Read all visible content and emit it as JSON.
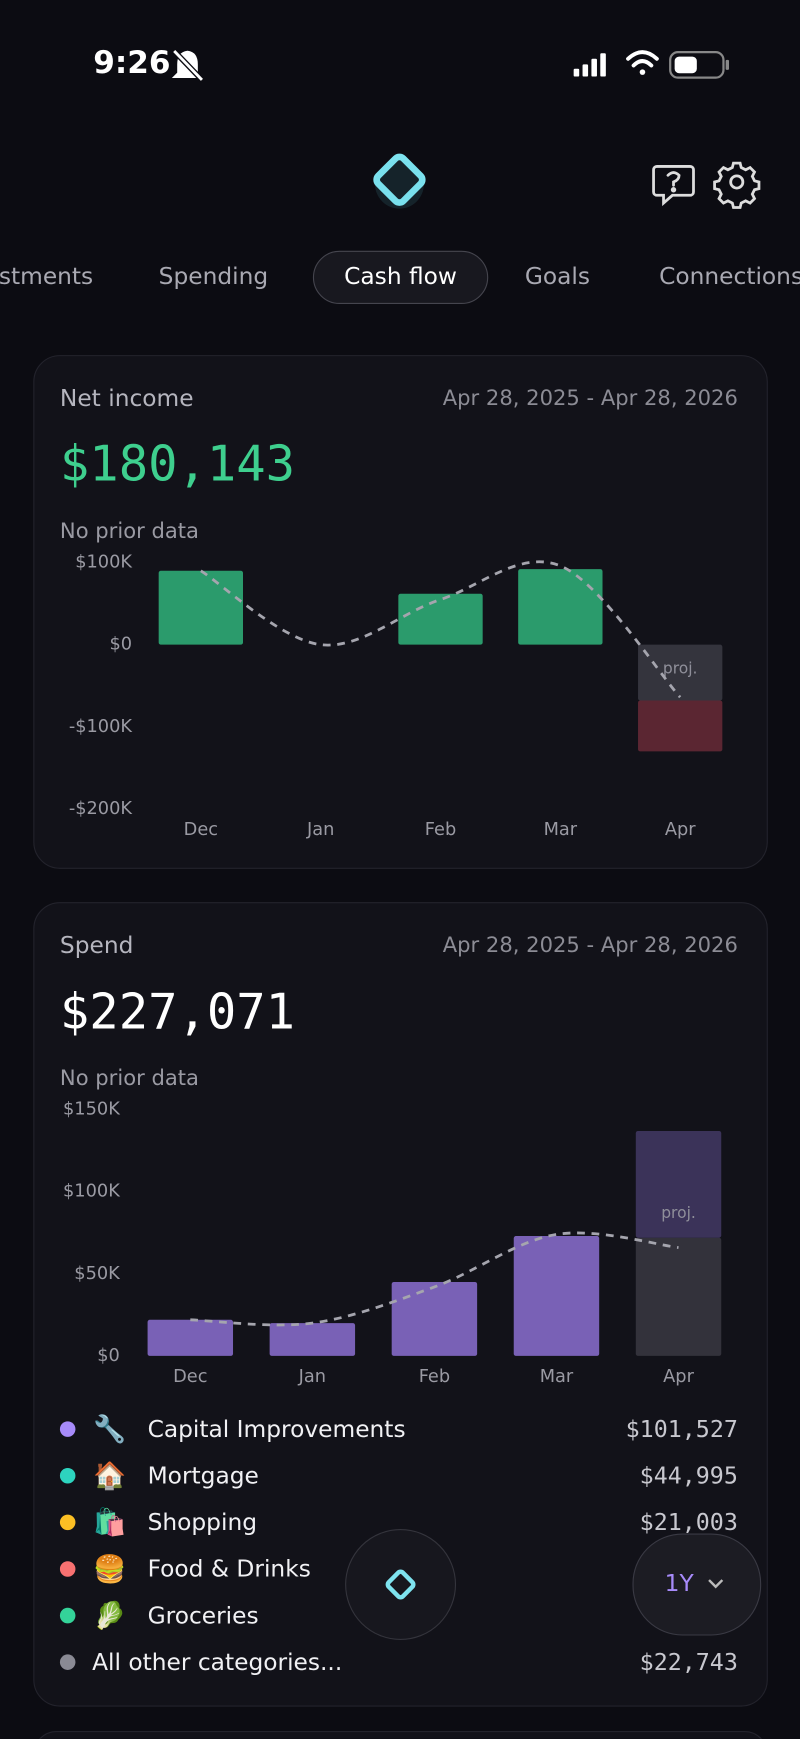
{
  "status": {
    "time": "9:26"
  },
  "tabs": [
    "Investments",
    "Spending",
    "Cash flow",
    "Goals",
    "Connections"
  ],
  "net_income": {
    "title": "Net income",
    "date_range": "Apr 28, 2025 - Apr 28, 2026",
    "amount": "$180,143",
    "comparison": "No prior data",
    "chart": {
      "type": "bar",
      "categories": [
        "Dec",
        "Jan",
        "Feb",
        "Mar",
        "Apr"
      ],
      "values": [
        90000,
        0,
        62000,
        92000,
        -62000
      ],
      "colors": [
        "#2b9b6c",
        "#2b9b6c",
        "#2b9b6c",
        "#2b9b6c",
        "#5b2632"
      ],
      "projected": [
        null,
        null,
        null,
        null,
        -68000
      ],
      "projected_color": "#34343d",
      "projected_label": "proj.",
      "projected_first": true,
      "trend": [
        90000,
        0,
        55000,
        96000,
        -64000
      ],
      "ylim": [
        -200000,
        100000
      ],
      "yticks": [
        {
          "value": 100000,
          "label": "$100K"
        },
        {
          "value": 0,
          "label": "$0"
        },
        {
          "value": -100000,
          "label": "-$100K"
        },
        {
          "value": -200000,
          "label": "-$200K"
        }
      ],
      "grid": false
    }
  },
  "spend": {
    "title": "Spend",
    "date_range": "Apr 28, 2025 - Apr 28, 2026",
    "amount": "$227,071",
    "comparison": "No prior data",
    "chart": {
      "type": "bar",
      "categories": [
        "Dec",
        "Jan",
        "Feb",
        "Mar",
        "Apr"
      ],
      "values": [
        22000,
        20000,
        45000,
        73000,
        72000
      ],
      "colors": [
        "#7961b6",
        "#7961b6",
        "#7961b6",
        "#7961b6",
        "#33323b"
      ],
      "projected": [
        null,
        null,
        null,
        null,
        65000
      ],
      "projected_color": "#3b3359",
      "projected_label": "proj.",
      "projected_first": false,
      "trend": [
        22000,
        20000,
        42000,
        74000,
        66000
      ],
      "ylim": [
        0,
        150000
      ],
      "yticks": [
        {
          "value": 150000,
          "label": "$150K"
        },
        {
          "value": 100000,
          "label": "$100K"
        },
        {
          "value": 50000,
          "label": "$50K"
        },
        {
          "value": 0,
          "label": "$0"
        }
      ],
      "grid": false
    },
    "breakdown": [
      {
        "color": "#a78bfa",
        "icon": "🔧",
        "name": "Capital Improvements",
        "amount": "$101,527"
      },
      {
        "color": "#2dd4bf",
        "icon": "🏠",
        "name": "Mortgage",
        "amount": "$44,995"
      },
      {
        "color": "#fbbf24",
        "icon": "🛍️",
        "name": "Shopping",
        "amount": "$21,003"
      },
      {
        "color": "#f87171",
        "icon": "🍔",
        "name": "Food & Drinks"
      },
      {
        "color": "#34d399",
        "icon": "🥬",
        "name": "Groceries"
      },
      {
        "color": "#8a8a94",
        "name": "All other categories...",
        "amount": "$22,743"
      }
    ]
  },
  "range_button": "1Y"
}
